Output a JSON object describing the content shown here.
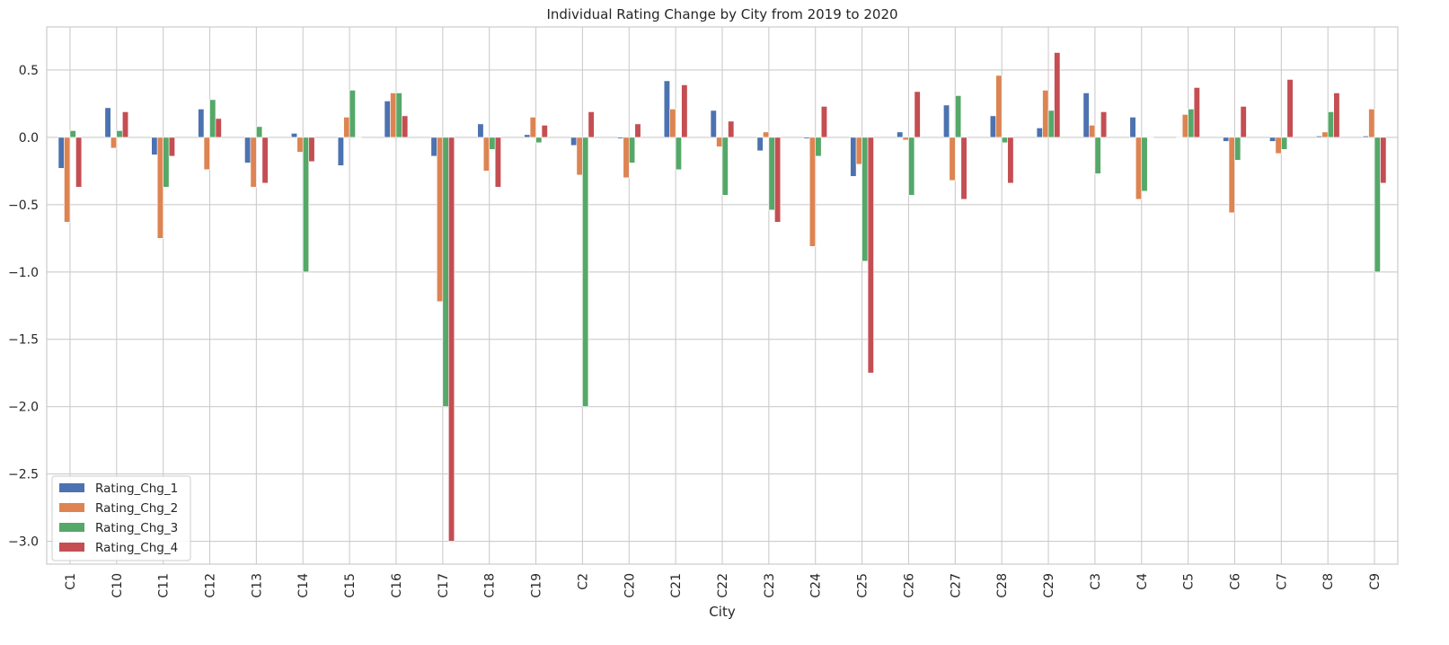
{
  "chart_data": {
    "type": "bar",
    "title": "Individual Rating Change by City from 2019 to 2020",
    "xlabel": "City",
    "ylabel": "",
    "ylim": [
      -3.17,
      0.82
    ],
    "yticks": [
      0.5,
      0.0,
      -0.5,
      -1.0,
      -1.5,
      -2.0,
      -2.5,
      -3.0
    ],
    "ytick_labels": [
      "0.5",
      "0.0",
      "−0.5",
      "−1.0",
      "−1.5",
      "−2.0",
      "−2.5",
      "−3.0"
    ],
    "grid": true,
    "legend_position": "lower-left",
    "categories": [
      "C1",
      "C10",
      "C11",
      "C12",
      "C13",
      "C14",
      "C15",
      "C16",
      "C17",
      "C18",
      "C19",
      "C2",
      "C20",
      "C21",
      "C22",
      "C23",
      "C24",
      "C25",
      "C26",
      "C27",
      "C28",
      "C29",
      "C3",
      "C4",
      "C5",
      "C6",
      "C7",
      "C8",
      "C9"
    ],
    "series": [
      {
        "name": "Rating_Chg_1",
        "color": "#4c72b0",
        "values": [
          -0.23,
          0.22,
          -0.13,
          0.21,
          -0.19,
          0.03,
          -0.21,
          0.27,
          -0.14,
          0.1,
          0.02,
          -0.06,
          -0.01,
          0.42,
          0.2,
          -0.1,
          -0.01,
          -0.29,
          0.04,
          0.24,
          0.16,
          0.07,
          0.33,
          0.15,
          0.0,
          -0.03,
          -0.03,
          0.01,
          0.01
        ]
      },
      {
        "name": "Rating_Chg_2",
        "color": "#dd8452",
        "values": [
          -0.63,
          -0.08,
          -0.75,
          -0.24,
          -0.37,
          -0.11,
          0.15,
          0.33,
          -1.22,
          -0.25,
          0.15,
          -0.28,
          -0.3,
          0.21,
          -0.07,
          0.04,
          -0.81,
          -0.2,
          -0.02,
          -0.32,
          0.46,
          0.35,
          0.09,
          -0.46,
          0.17,
          -0.56,
          -0.12,
          0.04,
          0.21
        ]
      },
      {
        "name": "Rating_Chg_3",
        "color": "#55a868",
        "values": [
          0.05,
          0.05,
          -0.37,
          0.28,
          0.08,
          -1.0,
          0.35,
          0.33,
          -2.0,
          -0.09,
          -0.04,
          -2.0,
          -0.19,
          -0.24,
          -0.43,
          -0.54,
          -0.14,
          -0.92,
          -0.43,
          0.31,
          -0.04,
          0.2,
          -0.27,
          -0.4,
          0.21,
          -0.17,
          -0.09,
          0.19,
          -1.0
        ]
      },
      {
        "name": "Rating_Chg_4",
        "color": "#c44e52",
        "values": [
          -0.37,
          0.19,
          -0.14,
          0.14,
          -0.34,
          -0.18,
          0.0,
          0.16,
          -3.0,
          -0.37,
          0.09,
          0.19,
          0.1,
          0.39,
          0.12,
          -0.63,
          0.23,
          -1.75,
          0.34,
          -0.46,
          -0.34,
          0.63,
          0.19,
          0.0,
          0.37,
          0.23,
          0.43,
          0.33,
          -0.34
        ]
      }
    ]
  }
}
